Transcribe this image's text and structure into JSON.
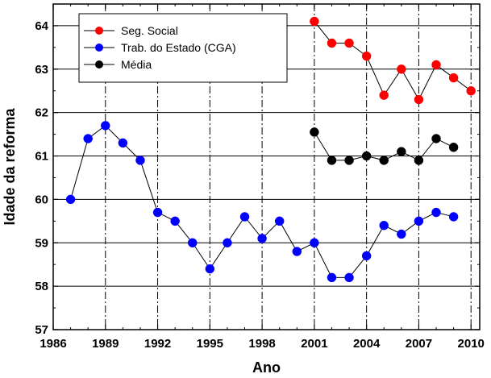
{
  "chart_data": {
    "type": "scatter",
    "xlabel": "Ano",
    "ylabel": "Idade da reforma",
    "xlim": [
      1986,
      2010.5
    ],
    "ylim": [
      57,
      64.5
    ],
    "xticks": [
      1986,
      1989,
      1992,
      1995,
      1998,
      2001,
      2004,
      2007,
      2010
    ],
    "yticks": [
      57,
      58,
      59,
      60,
      61,
      62,
      63,
      64
    ],
    "x_gridlines": "dash-dot at each labeled x tick",
    "y_gridlines": "solid at each y tick",
    "legend_position": "top-center",
    "series": [
      {
        "name": "Seg. Social",
        "color": "#ff0000",
        "x": [
          2001,
          2002,
          2003,
          2004,
          2005,
          2006,
          2007,
          2008,
          2009,
          2010
        ],
        "y": [
          64.1,
          63.6,
          63.6,
          63.3,
          62.4,
          63.0,
          62.3,
          63.1,
          62.8,
          62.5
        ]
      },
      {
        "name": "Trab. do Estado (CGA)",
        "color": "#0000ff",
        "x": [
          1987,
          1988,
          1989,
          1990,
          1991,
          1992,
          1993,
          1994,
          1995,
          1996,
          1997,
          1998,
          1999,
          2000,
          2001,
          2002,
          2003,
          2004,
          2005,
          2006,
          2007,
          2008,
          2009
        ],
        "y": [
          60.0,
          61.4,
          61.7,
          61.3,
          60.9,
          59.7,
          59.5,
          59.0,
          58.4,
          59.0,
          59.6,
          59.1,
          59.5,
          58.8,
          59.0,
          58.2,
          58.2,
          58.7,
          59.4,
          59.2,
          59.5,
          59.7,
          59.6
        ]
      },
      {
        "name": "Média",
        "color": "#000000",
        "x": [
          2001,
          2002,
          2003,
          2004,
          2005,
          2006,
          2007,
          2008,
          2009
        ],
        "y": [
          61.55,
          60.9,
          60.9,
          61.0,
          60.9,
          61.1,
          60.9,
          61.4,
          61.2
        ]
      }
    ]
  }
}
